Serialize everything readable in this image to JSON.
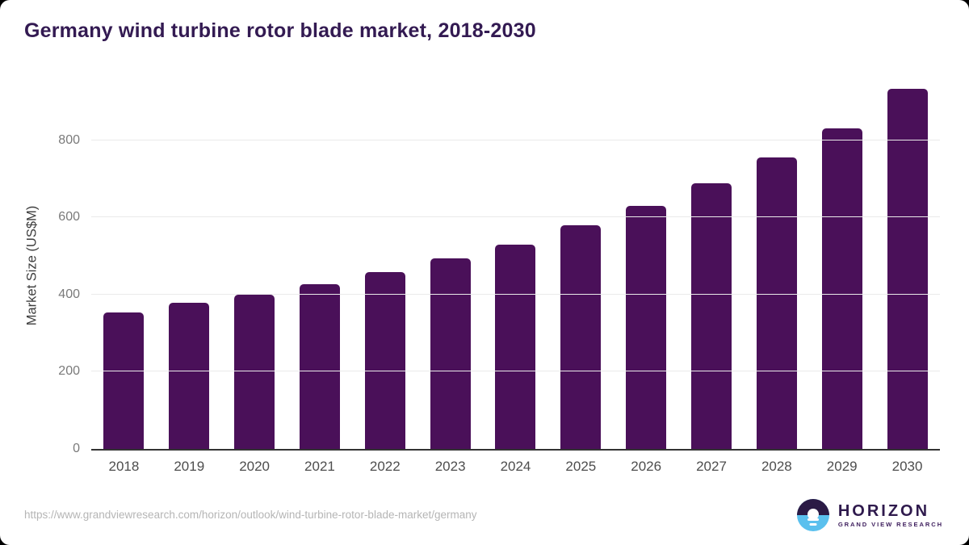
{
  "title": "Germany wind turbine rotor blade market, 2018-2030",
  "chart_data": {
    "type": "bar",
    "title": "Germany wind turbine rotor blade market, 2018-2030",
    "categories": [
      "2018",
      "2019",
      "2020",
      "2021",
      "2022",
      "2023",
      "2024",
      "2025",
      "2026",
      "2027",
      "2028",
      "2029",
      "2030"
    ],
    "values": [
      353,
      379,
      400,
      426,
      458,
      493,
      530,
      580,
      630,
      688,
      755,
      830,
      933
    ],
    "xlabel": "",
    "ylabel": "Market Size (US$M)",
    "ylim": [
      0,
      954
    ],
    "yticks": [
      0,
      200,
      400,
      600,
      800
    ],
    "grid": "horizontal",
    "legend": "none",
    "bar_color": "#4a1059"
  },
  "footer": {
    "source_url": "https://www.grandviewresearch.com/horizon/outlook/wind-turbine-rotor-blade-market/germany",
    "logo": {
      "name": "HORIZON",
      "subtitle": "GRAND VIEW RESEARCH",
      "icon": "horizon-sun-over-water-icon",
      "icon_top_color": "#2b1a45",
      "icon_bottom_color": "#5ac0ee"
    }
  },
  "colors": {
    "title": "#331a52",
    "bar": "#4a1059",
    "axis_line": "#333333",
    "gridline": "#eaeaea",
    "y_tick_label": "#7a7a7a",
    "x_tick_label": "#4d4d4d",
    "url_text": "#b5b5b5",
    "background": "#ffffff"
  }
}
